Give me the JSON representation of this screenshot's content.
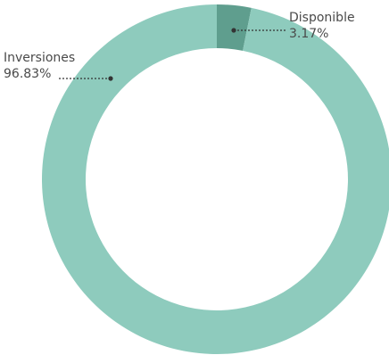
{
  "chart_data": {
    "type": "pie",
    "donut": true,
    "categories": [
      "Disponible",
      "Inversiones"
    ],
    "values": [
      3.17,
      96.83
    ],
    "value_labels": [
      "3.17%",
      "96.83%"
    ],
    "colors": [
      "#5f9e8e",
      "#8ecbbd"
    ],
    "legend": "none"
  }
}
